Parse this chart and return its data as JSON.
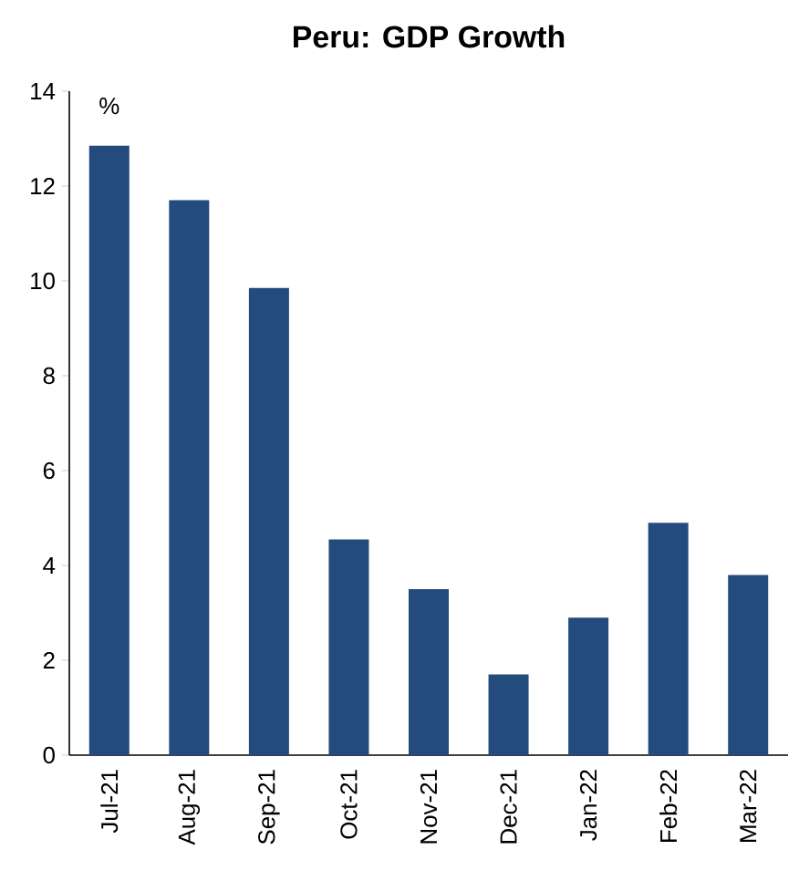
{
  "chart_data": {
    "type": "bar",
    "title": "Peru: GDP Growth",
    "ylabel": "%",
    "categories": [
      "Jul-21",
      "Aug-21",
      "Sep-21",
      "Oct-21",
      "Nov-21",
      "Dec-21",
      "Jan-22",
      "Feb-22",
      "Mar-22"
    ],
    "values": [
      12.85,
      11.7,
      9.85,
      4.55,
      3.5,
      1.7,
      2.9,
      4.9,
      3.8
    ],
    "color": "#234b7d",
    "ylim": [
      0,
      14
    ],
    "yticks": [
      0,
      2,
      4,
      6,
      8,
      10,
      12,
      14
    ]
  }
}
